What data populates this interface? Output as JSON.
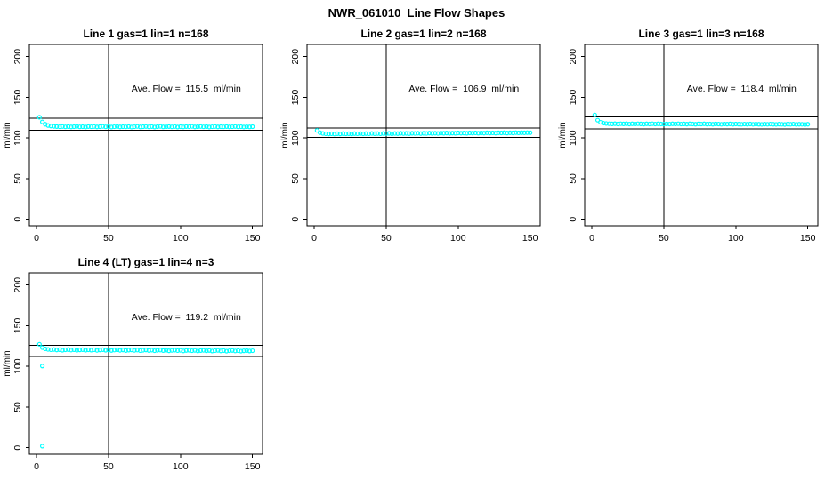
{
  "page_title": "NWR_061010  Line Flow Shapes",
  "colors": {
    "series": "#00FFFF",
    "axis": "#000000",
    "background": "#FFFFFF"
  },
  "chart_data": [
    {
      "type": "scatter",
      "title": "Line 1 gas=1 lin=1 n=168",
      "annotation": "Ave. Flow =  115.5  ml/min",
      "ave_flow_ml_min": 115.5,
      "ylabel": "ml/min",
      "xlim": [
        -5,
        157
      ],
      "ylim": [
        -8,
        215
      ],
      "xticks": [
        0,
        50,
        100,
        150
      ],
      "yticks": [
        0,
        50,
        100,
        150,
        200
      ],
      "vline_x": 50,
      "hlines": [
        124.0,
        109.5
      ],
      "annotation_xy": [
        104,
        157
      ],
      "x": [
        2,
        4,
        6,
        8,
        10,
        12,
        14,
        16,
        18,
        20,
        22,
        24,
        26,
        28,
        30,
        32,
        34,
        36,
        38,
        40,
        42,
        44,
        46,
        48,
        50,
        52,
        54,
        56,
        58,
        60,
        62,
        64,
        66,
        68,
        70,
        72,
        74,
        76,
        78,
        80,
        82,
        84,
        86,
        88,
        90,
        92,
        94,
        96,
        98,
        100,
        102,
        104,
        106,
        108,
        110,
        112,
        114,
        116,
        118,
        120,
        122,
        124,
        126,
        128,
        130,
        132,
        134,
        136,
        138,
        140,
        142,
        144,
        146,
        148,
        150
      ],
      "y": [
        125.5,
        119.8,
        116.9,
        115.4,
        114.7,
        114.3,
        114.0,
        113.8,
        114.1,
        113.7,
        114.0,
        113.6,
        113.9,
        114.2,
        113.7,
        113.9,
        113.5,
        114.0,
        113.8,
        114.1,
        113.6,
        113.9,
        114.2,
        113.7,
        114.0,
        113.5,
        113.8,
        114.1,
        113.6,
        113.9,
        113.7,
        114.0,
        113.5,
        113.8,
        114.2,
        113.6,
        113.9,
        114.1,
        113.7,
        114.0,
        113.5,
        113.9,
        114.2,
        113.6,
        113.8,
        114.0,
        113.7,
        114.1,
        113.5,
        113.9,
        113.6,
        114.0,
        113.8,
        114.2,
        113.6,
        113.9,
        114.1,
        113.7,
        114.0,
        113.5,
        113.8,
        114.1,
        113.6,
        113.9,
        113.7,
        114.0,
        113.6,
        113.8,
        114.1,
        113.7,
        113.9,
        113.5,
        113.8,
        113.6,
        113.9
      ]
    },
    {
      "type": "scatter",
      "title": "Line 2 gas=1 lin=2 n=168",
      "annotation": "Ave. Flow =  106.9  ml/min",
      "ave_flow_ml_min": 106.9,
      "ylabel": "ml/min",
      "xlim": [
        -5,
        157
      ],
      "ylim": [
        -8,
        215
      ],
      "xticks": [
        0,
        50,
        100,
        150
      ],
      "yticks": [
        0,
        50,
        100,
        150,
        200
      ],
      "vline_x": 50,
      "hlines": [
        112.0,
        101.0
      ],
      "annotation_xy": [
        104,
        157
      ],
      "x": [
        2,
        4,
        6,
        8,
        10,
        12,
        14,
        16,
        18,
        20,
        22,
        24,
        26,
        28,
        30,
        32,
        34,
        36,
        38,
        40,
        42,
        44,
        46,
        48,
        50,
        52,
        54,
        56,
        58,
        60,
        62,
        64,
        66,
        68,
        70,
        72,
        74,
        76,
        78,
        80,
        82,
        84,
        86,
        88,
        90,
        92,
        94,
        96,
        98,
        100,
        102,
        104,
        106,
        108,
        110,
        112,
        114,
        116,
        118,
        120,
        122,
        124,
        126,
        128,
        130,
        132,
        134,
        136,
        138,
        140,
        142,
        144,
        146,
        148,
        150
      ],
      "y": [
        109.3,
        106.6,
        105.6,
        105.2,
        105.0,
        105.2,
        104.9,
        105.3,
        105.0,
        105.4,
        105.1,
        105.3,
        105.0,
        105.4,
        105.2,
        105.5,
        105.1,
        105.4,
        105.2,
        105.6,
        105.3,
        105.5,
        105.2,
        105.6,
        105.4,
        105.7,
        105.3,
        105.6,
        105.4,
        105.8,
        105.5,
        105.7,
        105.4,
        105.8,
        105.6,
        105.9,
        105.5,
        105.8,
        105.6,
        106.0,
        105.7,
        105.9,
        105.6,
        106.0,
        105.8,
        106.1,
        105.7,
        106.0,
        105.8,
        106.2,
        105.9,
        106.1,
        105.8,
        106.2,
        106.0,
        106.3,
        105.9,
        106.2,
        106.0,
        106.4,
        106.1,
        106.3,
        106.0,
        106.4,
        106.2,
        106.5,
        106.1,
        106.4,
        106.2,
        106.6,
        106.3,
        106.5,
        106.4,
        106.6,
        106.5
      ]
    },
    {
      "type": "scatter",
      "title": "Line 3 gas=1 lin=3 n=168",
      "annotation": "Ave. Flow =  118.4  ml/min",
      "ave_flow_ml_min": 118.4,
      "ylabel": "ml/min",
      "xlim": [
        -5,
        157
      ],
      "ylim": [
        -8,
        215
      ],
      "xticks": [
        0,
        50,
        100,
        150
      ],
      "yticks": [
        0,
        50,
        100,
        150,
        200
      ],
      "vline_x": 50,
      "hlines": [
        126.0,
        111.0
      ],
      "annotation_xy": [
        104,
        157
      ],
      "x": [
        2,
        4,
        6,
        8,
        10,
        12,
        14,
        16,
        18,
        20,
        22,
        24,
        26,
        28,
        30,
        32,
        34,
        36,
        38,
        40,
        42,
        44,
        46,
        48,
        50,
        52,
        54,
        56,
        58,
        60,
        62,
        64,
        66,
        68,
        70,
        72,
        74,
        76,
        78,
        80,
        82,
        84,
        86,
        88,
        90,
        92,
        94,
        96,
        98,
        100,
        102,
        104,
        106,
        108,
        110,
        112,
        114,
        116,
        118,
        120,
        122,
        124,
        126,
        128,
        130,
        132,
        134,
        136,
        138,
        140,
        142,
        144,
        146,
        148,
        150
      ],
      "y": [
        128.3,
        121.9,
        119.3,
        118.2,
        117.8,
        117.5,
        117.3,
        117.6,
        117.2,
        117.5,
        117.3,
        117.6,
        117.1,
        117.4,
        117.2,
        117.5,
        117.3,
        117.0,
        117.4,
        117.2,
        117.5,
        117.1,
        117.4,
        117.2,
        117.0,
        117.3,
        117.1,
        117.4,
        117.2,
        117.5,
        117.1,
        117.3,
        117.0,
        117.4,
        117.2,
        116.9,
        117.3,
        117.1,
        117.4,
        117.0,
        117.2,
        116.9,
        117.3,
        117.1,
        116.8,
        117.2,
        117.0,
        117.3,
        116.9,
        117.2,
        117.0,
        116.8,
        117.1,
        116.9,
        117.2,
        116.8,
        117.1,
        116.9,
        116.7,
        117.0,
        116.8,
        117.1,
        116.9,
        116.7,
        117.0,
        116.8,
        116.6,
        117.0,
        116.8,
        117.1,
        116.7,
        116.9,
        116.8,
        116.6,
        116.9
      ]
    },
    {
      "type": "scatter",
      "title": "Line 4 (LT) gas=1 lin=4 n=3",
      "annotation": "Ave. Flow =  119.2  ml/min",
      "ave_flow_ml_min": 119.2,
      "ylabel": "ml/min",
      "xlim": [
        -5,
        157
      ],
      "ylim": [
        -8,
        215
      ],
      "xticks": [
        0,
        50,
        100,
        150
      ],
      "yticks": [
        0,
        50,
        100,
        150,
        200
      ],
      "vline_x": 50,
      "hlines": [
        126.0,
        112.0
      ],
      "annotation_xy": [
        104,
        157
      ],
      "outliers": [
        [
          4,
          100.5
        ],
        [
          4,
          2.0
        ]
      ],
      "x": [
        2,
        4,
        6,
        8,
        10,
        12,
        14,
        16,
        18,
        20,
        22,
        24,
        26,
        28,
        30,
        32,
        34,
        36,
        38,
        40,
        42,
        44,
        46,
        48,
        50,
        52,
        54,
        56,
        58,
        60,
        62,
        64,
        66,
        68,
        70,
        72,
        74,
        76,
        78,
        80,
        82,
        84,
        86,
        88,
        90,
        92,
        94,
        96,
        98,
        100,
        102,
        104,
        106,
        108,
        110,
        112,
        114,
        116,
        118,
        120,
        122,
        124,
        126,
        128,
        130,
        132,
        134,
        136,
        138,
        140,
        142,
        144,
        146,
        148,
        150
      ],
      "y": [
        127.2,
        123.1,
        121.6,
        120.9,
        120.5,
        120.8,
        120.2,
        120.6,
        119.9,
        120.4,
        120.7,
        120.1,
        120.5,
        119.8,
        120.3,
        120.6,
        119.9,
        120.4,
        120.0,
        120.5,
        119.7,
        120.2,
        120.6,
        119.9,
        120.3,
        119.6,
        120.1,
        120.4,
        119.8,
        120.2,
        119.5,
        120.0,
        120.3,
        119.7,
        120.1,
        119.4,
        119.9,
        120.2,
        119.6,
        120.0,
        119.3,
        119.8,
        120.1,
        119.5,
        119.9,
        119.2,
        119.7,
        120.0,
        119.4,
        119.8,
        119.1,
        119.6,
        119.9,
        119.3,
        119.7,
        119.0,
        119.5,
        119.8,
        119.2,
        119.6,
        118.9,
        119.4,
        119.7,
        119.1,
        119.5,
        118.8,
        119.3,
        119.6,
        119.0,
        119.4,
        118.8,
        119.2,
        119.5,
        118.9,
        119.3
      ]
    }
  ]
}
